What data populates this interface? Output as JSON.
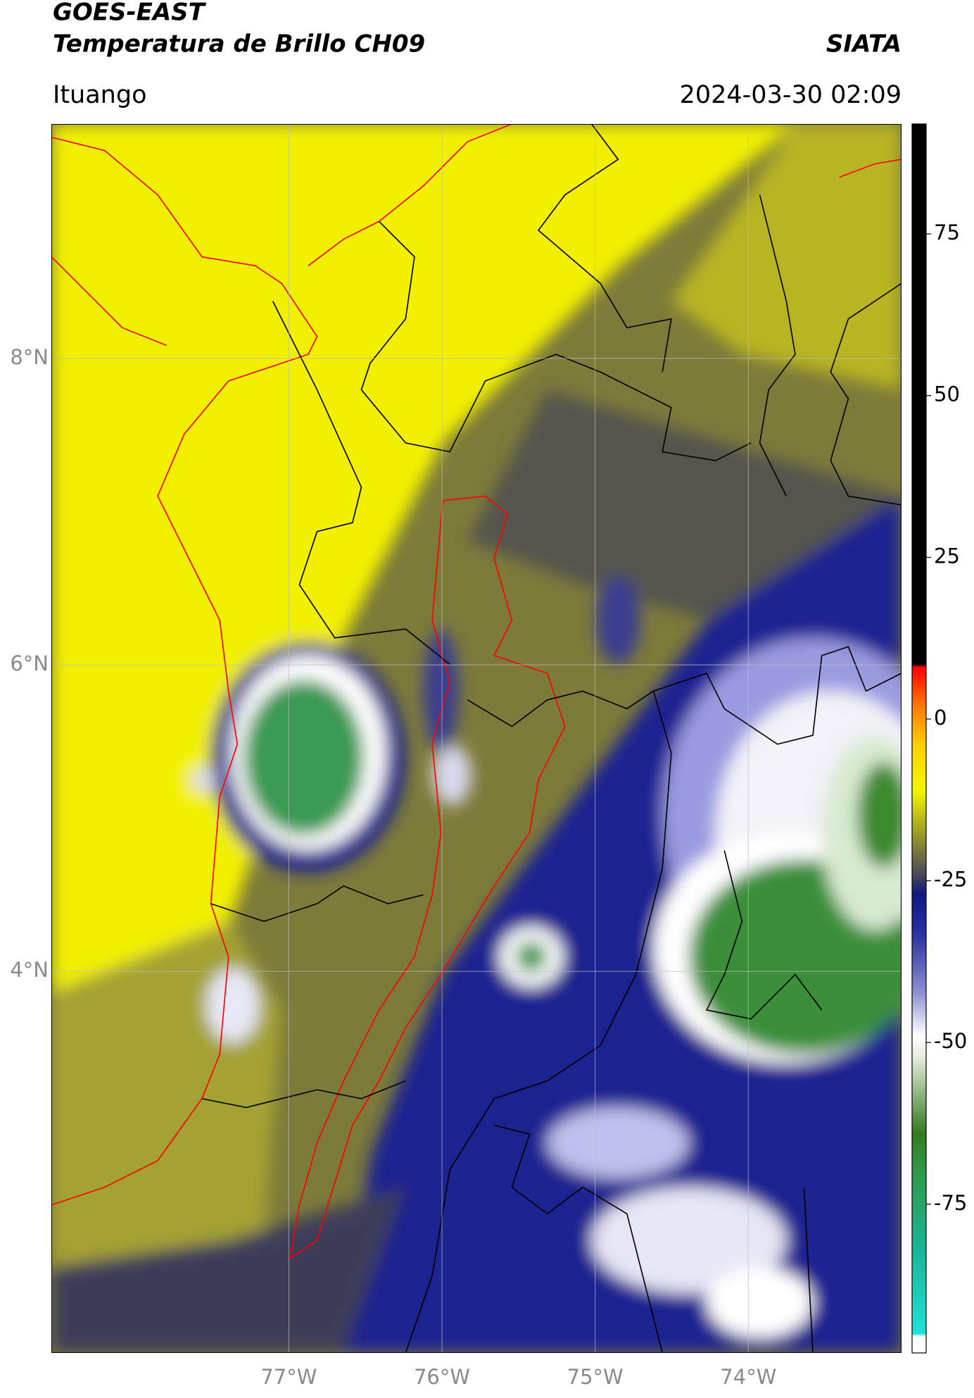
{
  "header": {
    "title_lines": [
      "GOES-EAST",
      "Temperatura de Brillo CH09"
    ],
    "brand": "SIATA",
    "location": "Ituango",
    "timestamp": "2024-03-30 02:09"
  },
  "map": {
    "xlim": [
      -78.55,
      -73.0
    ],
    "ylim": [
      1.51,
      9.53
    ],
    "xticks": [
      {
        "value": -77,
        "label": "77°W"
      },
      {
        "value": -76,
        "label": "76°W"
      },
      {
        "value": -75,
        "label": "75°W"
      },
      {
        "value": -74,
        "label": "74°W"
      }
    ],
    "yticks": [
      {
        "value": 8,
        "label": "8°N"
      },
      {
        "value": 6,
        "label": "6°N"
      },
      {
        "value": 4,
        "label": "4°N"
      }
    ],
    "grid": true
  },
  "colorbar": {
    "lim": [
      -98,
      92
    ],
    "ticks": [
      -75,
      -50,
      -25,
      0,
      25,
      50,
      75
    ],
    "stops": [
      {
        "value": -98,
        "color": "#ffffff"
      },
      {
        "value": -95.5,
        "color": "#ffffff"
      },
      {
        "value": -95,
        "color": "#20e0d8"
      },
      {
        "value": -82,
        "color": "#1ab598"
      },
      {
        "value": -70,
        "color": "#2f9a4a"
      },
      {
        "value": -64,
        "color": "#347a22"
      },
      {
        "value": -52,
        "color": "#e8f0e0"
      },
      {
        "value": -49,
        "color": "#ffffff"
      },
      {
        "value": -42,
        "color": "#8a8cd0"
      },
      {
        "value": -33,
        "color": "#2630a0"
      },
      {
        "value": -27,
        "color": "#101880"
      },
      {
        "value": -24,
        "color": "#4a4a58"
      },
      {
        "value": -19,
        "color": "#8c8a30"
      },
      {
        "value": -11,
        "color": "#f5f500"
      },
      {
        "value": -4,
        "color": "#ffd000"
      },
      {
        "value": 2,
        "color": "#ff7a00"
      },
      {
        "value": 8,
        "color": "#ff0000"
      },
      {
        "value": 8.5,
        "color": "#000000"
      },
      {
        "value": 92,
        "color": "#000000"
      }
    ]
  }
}
